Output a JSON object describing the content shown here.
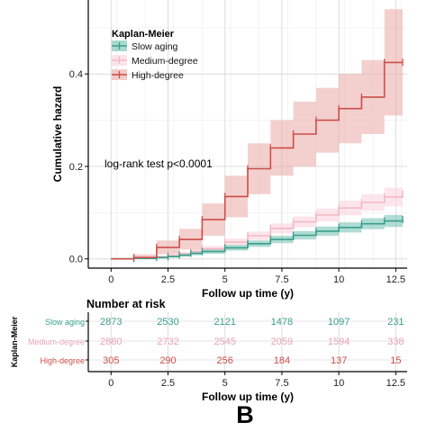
{
  "panel_label": "B",
  "chart_data": {
    "type": "line",
    "subtype": "kaplan-meier cumulative hazard step plot",
    "ylabel": "Cumulative hazard",
    "xlabel": "Follow up time (y)",
    "xlim": [
      -1,
      13
    ],
    "ylim": [
      -0.02,
      0.56
    ],
    "x_ticks": [
      0,
      2.5,
      5,
      7.5,
      10,
      12.5
    ],
    "x_tick_labels": [
      "0",
      "2.5",
      "5",
      "7.5",
      "10",
      "12.5"
    ],
    "y_ticks": [
      0.0,
      0.2,
      0.4
    ],
    "y_tick_labels": [
      "0.0",
      "0.2",
      "0.4"
    ],
    "grid": true,
    "background": "white with light gray grid",
    "legend": {
      "title": "Kaplan-Meier",
      "position": "top-left",
      "entries": [
        "Slow aging",
        "Medium-degree",
        "High-degree"
      ]
    },
    "annotation": "log-rank test p<0.0001",
    "series": [
      {
        "name": "Slow aging",
        "color": "#3a9e8c",
        "band_color": "#6fbfae",
        "x": [
          0,
          1,
          2,
          2.5,
          3,
          3.5,
          4,
          5,
          6,
          7,
          8,
          9,
          10,
          11,
          12,
          12.8
        ],
        "y": [
          0,
          0.001,
          0.003,
          0.005,
          0.008,
          0.012,
          0.016,
          0.024,
          0.033,
          0.042,
          0.051,
          0.06,
          0.068,
          0.076,
          0.082,
          0.085
        ],
        "lower": [
          0,
          0.0,
          0.001,
          0.003,
          0.005,
          0.008,
          0.011,
          0.018,
          0.026,
          0.034,
          0.042,
          0.05,
          0.057,
          0.064,
          0.069,
          0.071
        ],
        "upper": [
          0,
          0.003,
          0.006,
          0.008,
          0.011,
          0.016,
          0.021,
          0.03,
          0.04,
          0.05,
          0.06,
          0.07,
          0.079,
          0.088,
          0.095,
          0.099
        ]
      },
      {
        "name": "Medium-degree",
        "color": "#f4b8c4",
        "band_color": "#f9d2da",
        "x": [
          0,
          1,
          2,
          2.5,
          3,
          3.5,
          4,
          5,
          6,
          7,
          8,
          9,
          10,
          11,
          12,
          12.8
        ],
        "y": [
          0,
          0.001,
          0.004,
          0.007,
          0.011,
          0.016,
          0.022,
          0.036,
          0.05,
          0.066,
          0.08,
          0.095,
          0.11,
          0.122,
          0.134,
          0.14
        ],
        "lower": [
          0,
          0.0,
          0.002,
          0.004,
          0.007,
          0.011,
          0.016,
          0.028,
          0.041,
          0.055,
          0.068,
          0.081,
          0.094,
          0.104,
          0.114,
          0.118
        ],
        "upper": [
          0,
          0.003,
          0.007,
          0.01,
          0.015,
          0.021,
          0.028,
          0.044,
          0.059,
          0.077,
          0.092,
          0.109,
          0.126,
          0.14,
          0.154,
          0.162
        ]
      },
      {
        "name": "High-degree",
        "color": "#cc4e49",
        "band_color": "#eaaaa6",
        "x": [
          0,
          1,
          2,
          3,
          4,
          5,
          6,
          7,
          8,
          9,
          10,
          11,
          12,
          12.8
        ],
        "y": [
          0,
          0.003,
          0.025,
          0.042,
          0.085,
          0.135,
          0.195,
          0.24,
          0.27,
          0.3,
          0.325,
          0.35,
          0.425,
          0.425
        ],
        "lower": [
          0,
          0.0,
          0.01,
          0.02,
          0.05,
          0.09,
          0.14,
          0.18,
          0.2,
          0.23,
          0.25,
          0.27,
          0.31,
          0.31
        ],
        "upper": [
          0,
          0.01,
          0.04,
          0.065,
          0.12,
          0.18,
          0.25,
          0.3,
          0.34,
          0.37,
          0.4,
          0.43,
          0.54,
          0.54
        ]
      }
    ],
    "risk_table": {
      "title": "Number at risk",
      "ylabel": "Kaplan-Meier",
      "xlabel": "Follow up time (y)",
      "x": [
        0,
        2.5,
        5,
        7.5,
        10,
        12.5
      ],
      "x_tick_labels": [
        "0",
        "2.5",
        "5",
        "7.5",
        "10",
        "12.5"
      ],
      "rows": [
        {
          "name": "Slow aging",
          "label": "Slow aging",
          "color": "#3a9e8c",
          "values": [
            "2873",
            "2530",
            "2121",
            "1478",
            "1097",
            "231"
          ]
        },
        {
          "name": "Medium-degree",
          "label": "Medium-degree",
          "color": "#e8a3b3",
          "values": [
            "2880",
            "2732",
            "2545",
            "2059",
            "1594",
            "338"
          ]
        },
        {
          "name": "High-degree",
          "label": "High-degree",
          "color": "#cc4e49",
          "values": [
            "305",
            "290",
            "256",
            "184",
            "137",
            "15"
          ]
        }
      ]
    }
  }
}
